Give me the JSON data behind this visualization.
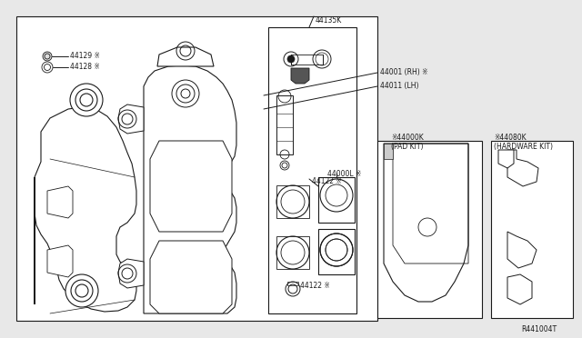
{
  "bg_color": "#e8e8e8",
  "diagram_bg": "#ffffff",
  "line_color": "#1a1a1a",
  "ref_code": "R441004T",
  "labels": {
    "44129": "44129 ※",
    "44128": "44128 ※",
    "44135K": "44135K",
    "44122a": "44122 ※",
    "44000L": "44000L ※",
    "44122b": "44122 ※",
    "44001": "44001 (RH) ※",
    "44011": "44011 (LH)",
    "44000K": "※44000K\n(PAD KIT)",
    "44080K": "※44080K\n(HARDWARE KIT)"
  }
}
